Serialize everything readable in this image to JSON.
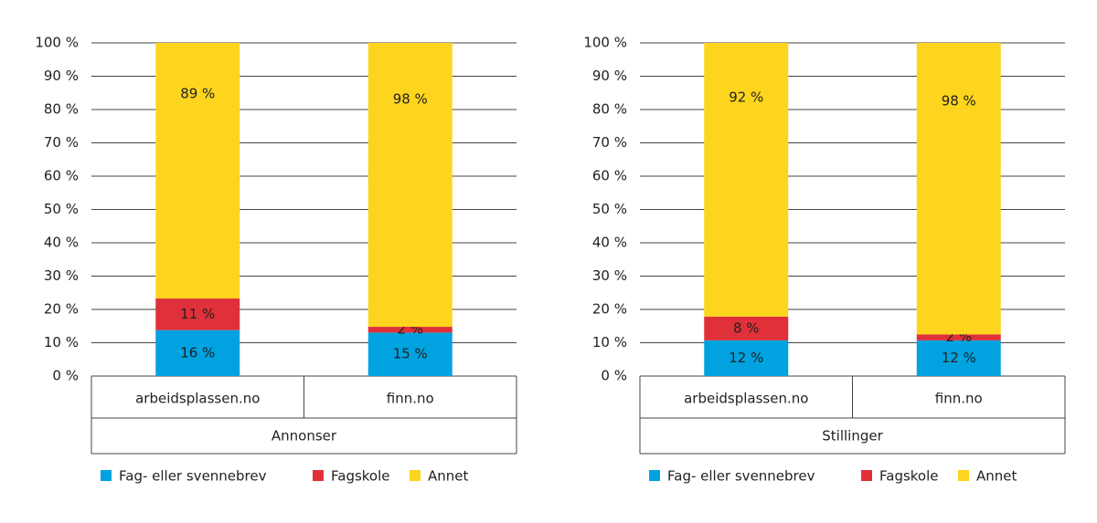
{
  "chart_data": [
    {
      "type": "bar",
      "stacked": "percent",
      "group_label": "Annonser",
      "categories": [
        "arbeidsplassen.no",
        "finn.no"
      ],
      "series": [
        {
          "name": "Fag- eller svennebrev",
          "color": "#00a3e0",
          "values": [
            16,
            15
          ],
          "value_labels": [
            "16 %",
            "15 %"
          ]
        },
        {
          "name": "Fagskole",
          "color": "#e0303a",
          "values": [
            11,
            2
          ],
          "value_labels": [
            "11 %",
            "2 %"
          ]
        },
        {
          "name": "Annet",
          "color": "#fdd51e",
          "values": [
            89,
            98
          ],
          "value_labels": [
            "89 %",
            "98 %"
          ]
        }
      ],
      "ylim": [
        0,
        100
      ],
      "yticks": [
        {
          "value": 0,
          "label": "0 %"
        },
        {
          "value": 10,
          "label": "10 %"
        },
        {
          "value": 20,
          "label": "20 %"
        },
        {
          "value": 30,
          "label": "30 %"
        },
        {
          "value": 40,
          "label": "40 %"
        },
        {
          "value": 50,
          "label": "50 %"
        },
        {
          "value": 60,
          "label": "60 %"
        },
        {
          "value": 70,
          "label": "70 %"
        },
        {
          "value": 80,
          "label": "80 %"
        },
        {
          "value": 90,
          "label": "90 %"
        },
        {
          "value": 100,
          "label": "100 %"
        }
      ],
      "grid": true,
      "legend": "bottom"
    },
    {
      "type": "bar",
      "stacked": "percent",
      "group_label": "Stillinger",
      "categories": [
        "arbeidsplassen.no",
        "finn.no"
      ],
      "series": [
        {
          "name": "Fag- eller svennebrev",
          "color": "#00a3e0",
          "values": [
            12,
            12
          ],
          "value_labels": [
            "12 %",
            "12 %"
          ]
        },
        {
          "name": "Fagskole",
          "color": "#e0303a",
          "values": [
            8,
            2
          ],
          "value_labels": [
            "8 %",
            "2 %"
          ]
        },
        {
          "name": "Annet",
          "color": "#fdd51e",
          "values": [
            92,
            98
          ],
          "value_labels": [
            "92 %",
            "98 %"
          ]
        }
      ],
      "ylim": [
        0,
        100
      ],
      "yticks": [
        {
          "value": 0,
          "label": "0 %"
        },
        {
          "value": 10,
          "label": "10 %"
        },
        {
          "value": 20,
          "label": "20 %"
        },
        {
          "value": 30,
          "label": "30 %"
        },
        {
          "value": 40,
          "label": "40 %"
        },
        {
          "value": 50,
          "label": "50 %"
        },
        {
          "value": 60,
          "label": "60 %"
        },
        {
          "value": 70,
          "label": "70 %"
        },
        {
          "value": 80,
          "label": "80 %"
        },
        {
          "value": 90,
          "label": "90 %"
        },
        {
          "value": 100,
          "label": "100 %"
        }
      ],
      "grid": true,
      "legend": "bottom"
    }
  ]
}
